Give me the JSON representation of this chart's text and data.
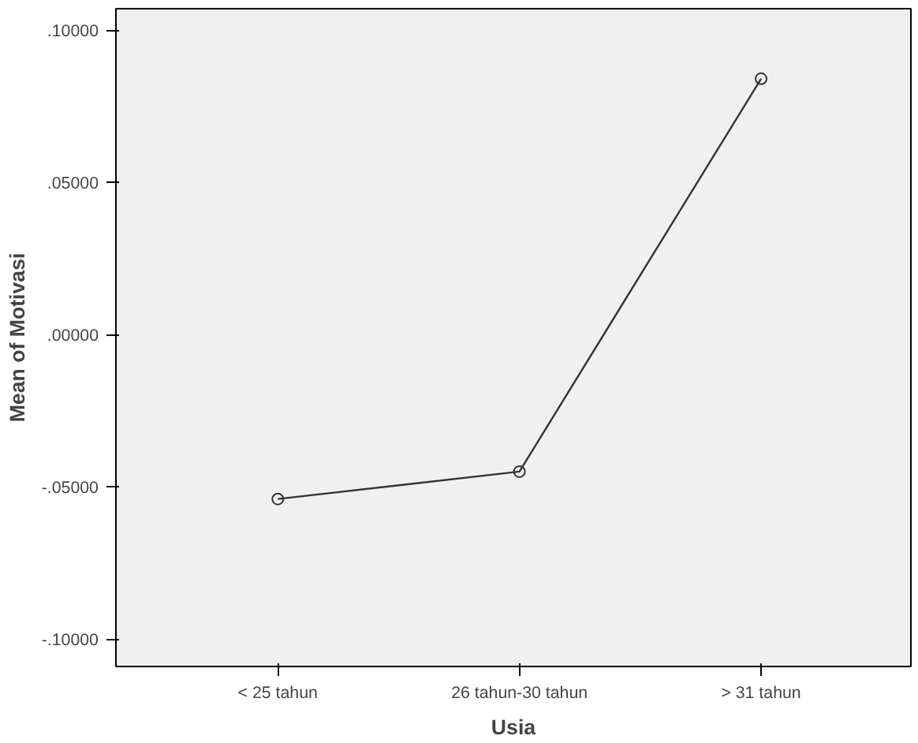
{
  "chart_data": {
    "type": "line",
    "xlabel": "Usia",
    "ylabel": "Mean of Motivasi",
    "categories": [
      "< 25 tahun",
      "26 tahun-30 tahun",
      "> 31 tahun"
    ],
    "series": [
      {
        "color": "#333333",
        "values": [
          -0.054,
          -0.045,
          0.084
        ]
      }
    ],
    "ylim": [
      -0.109,
      0.107
    ],
    "yticks": [
      {
        "value": -0.1,
        "label": "-.10000"
      },
      {
        "value": -0.05,
        "label": "-.05000"
      },
      {
        "value": 0,
        "label": ".00000"
      },
      {
        "value": 0.05,
        "label": ".05000"
      },
      {
        "value": 0.1,
        "label": ".10000"
      }
    ],
    "marker": "circle",
    "line_style": "solid",
    "grid": false
  }
}
